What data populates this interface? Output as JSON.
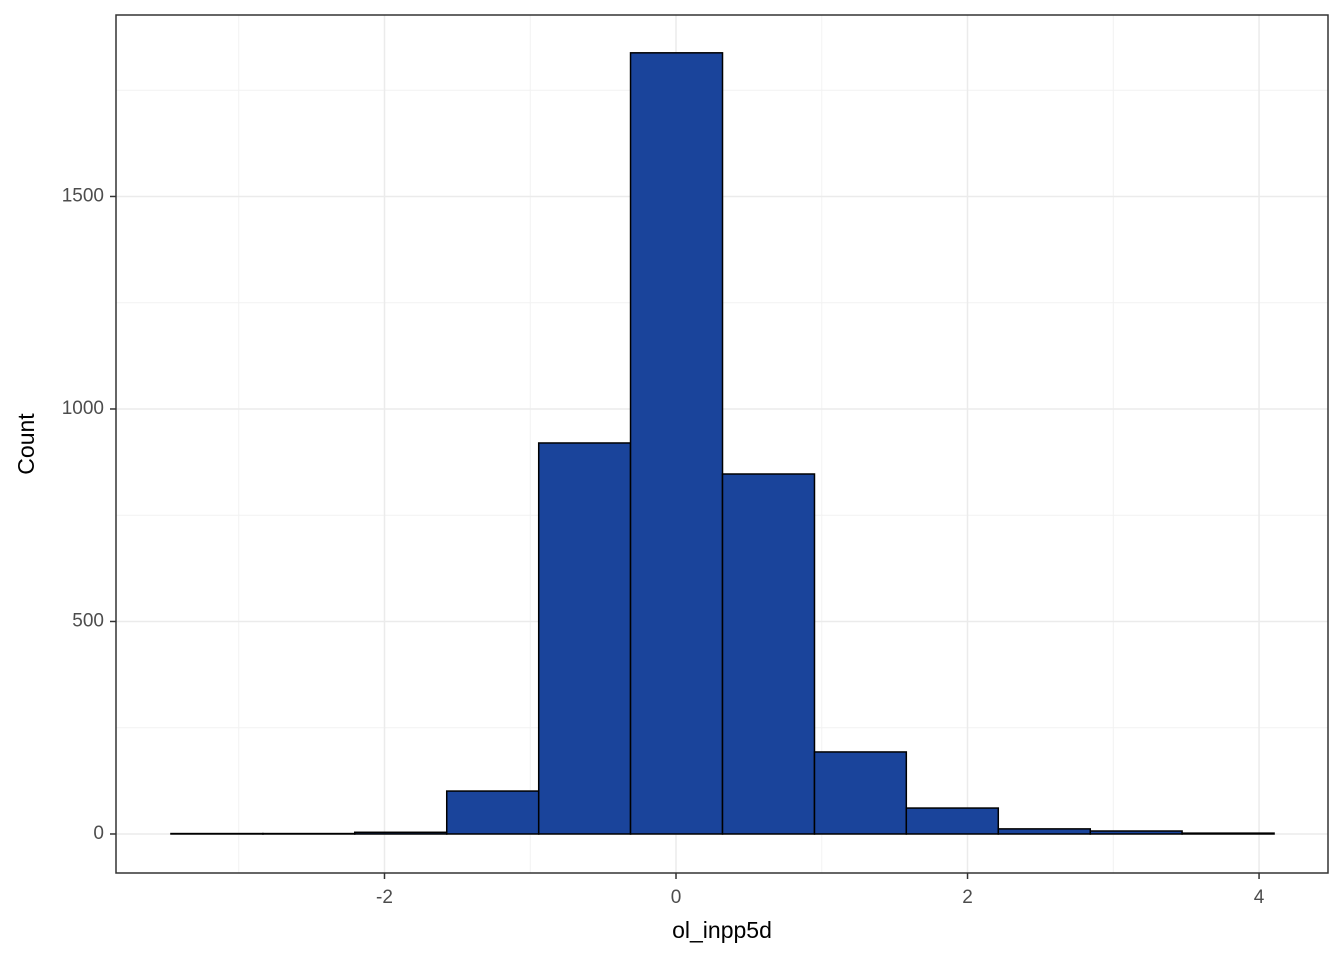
{
  "chart_data": {
    "type": "histogram",
    "x_label": "ol_inpp5d",
    "y_label": "Count",
    "bins": [
      -3.465,
      -2.834,
      -2.204,
      -1.573,
      -0.942,
      -0.312,
      0.319,
      0.95,
      1.58,
      2.211,
      2.842,
      3.472,
      4.103
    ],
    "values": [
      1,
      1,
      4,
      101,
      920,
      1838,
      847,
      193,
      61,
      12,
      7,
      2
    ],
    "color": "#1a449b",
    "xlim": [
      -3.842,
      4.473
    ],
    "ylim": [
      -91.8,
      1927
    ],
    "xticks": [
      -2,
      0,
      2,
      4
    ],
    "yticks": [
      0,
      500,
      1000,
      1500
    ],
    "xminor": [
      -3,
      -1,
      1,
      3
    ],
    "yminor": [
      250,
      750,
      1250,
      1750
    ],
    "grid": true
  }
}
